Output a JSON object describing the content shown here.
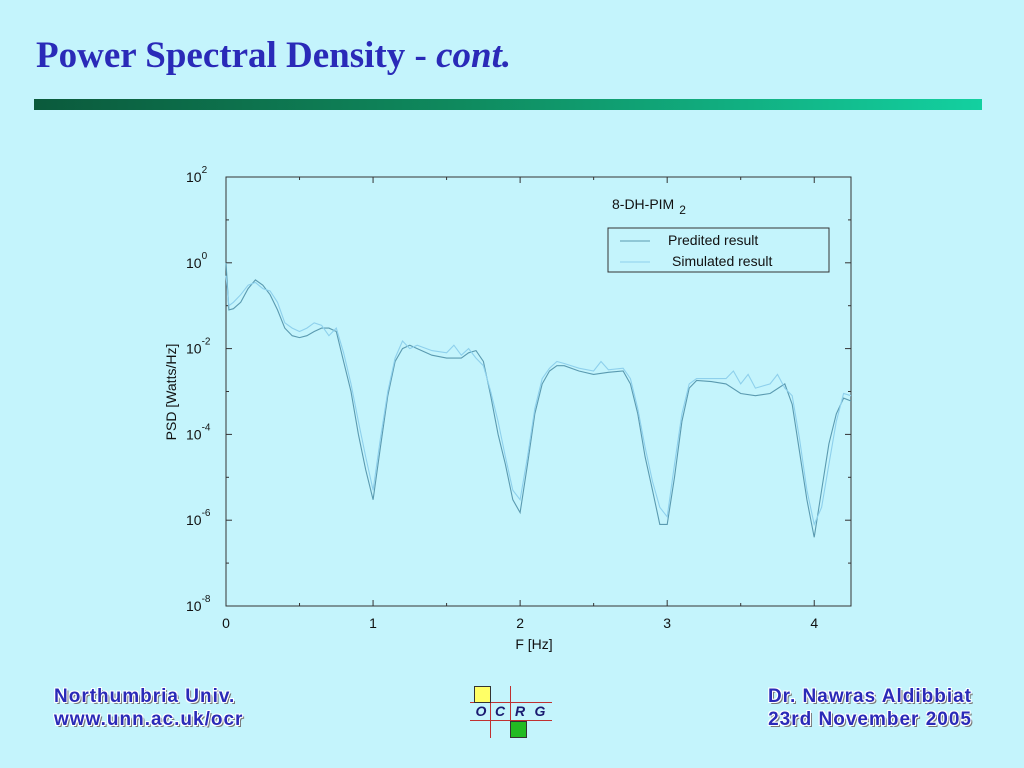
{
  "slide": {
    "title_main": "Power Spectral Density - ",
    "title_emph": "cont.",
    "footer_left_line1": "Northumbria Univ.",
    "footer_left_line2": "www.unn.ac.uk/ocr",
    "footer_right_line1": "Dr. Nawras Aldibbiat",
    "footer_right_line2": "23rd November 2005",
    "logo_letters": [
      "O",
      "C",
      "R",
      "G"
    ],
    "logo_colors": {
      "top_box": "#ffff66",
      "bottom_box": "#22bb22"
    }
  },
  "chart_data": {
    "type": "line",
    "annotation": "8-DH-PIM",
    "annotation_sub": "2",
    "xlabel": "F [Hz]",
    "ylabel": "PSD [Watts/Hz]",
    "xlim": [
      0,
      4.25
    ],
    "ylim_exponent": [
      -8,
      2
    ],
    "yscale": "log",
    "x_ticks": [
      0,
      1,
      2,
      3,
      4
    ],
    "y_ticks": [
      {
        "exp": -8,
        "base": "10",
        "sup": "-8"
      },
      {
        "exp": -6,
        "base": "10",
        "sup": "-6"
      },
      {
        "exp": -4,
        "base": "10",
        "sup": "-4"
      },
      {
        "exp": -2,
        "base": "10",
        "sup": "-2"
      },
      {
        "exp": 0,
        "base": "10",
        "sup": "0"
      },
      {
        "exp": 2,
        "base": "10",
        "sup": "2"
      }
    ],
    "legend_position": "top-right",
    "series": [
      {
        "name": "Predited result",
        "color": "#5a9ab0",
        "points": [
          [
            0.0,
            1.0
          ],
          [
            0.02,
            0.08
          ],
          [
            0.05,
            0.085
          ],
          [
            0.1,
            0.12
          ],
          [
            0.15,
            0.25
          ],
          [
            0.2,
            0.4
          ],
          [
            0.25,
            0.3
          ],
          [
            0.3,
            0.18
          ],
          [
            0.35,
            0.08
          ],
          [
            0.4,
            0.03
          ],
          [
            0.45,
            0.02
          ],
          [
            0.5,
            0.018
          ],
          [
            0.55,
            0.02
          ],
          [
            0.6,
            0.025
          ],
          [
            0.65,
            0.03
          ],
          [
            0.7,
            0.03
          ],
          [
            0.75,
            0.025
          ],
          [
            0.8,
            0.005
          ],
          [
            0.85,
            0.001
          ],
          [
            0.9,
            0.0001
          ],
          [
            0.95,
            1.5e-05
          ],
          [
            1.0,
            3e-06
          ],
          [
            1.05,
            5e-05
          ],
          [
            1.1,
            0.0008
          ],
          [
            1.15,
            0.005
          ],
          [
            1.2,
            0.01
          ],
          [
            1.25,
            0.012
          ],
          [
            1.3,
            0.01
          ],
          [
            1.4,
            0.007
          ],
          [
            1.5,
            0.006
          ],
          [
            1.6,
            0.006
          ],
          [
            1.65,
            0.008
          ],
          [
            1.7,
            0.009
          ],
          [
            1.75,
            0.005
          ],
          [
            1.8,
            0.0008
          ],
          [
            1.85,
            0.0001
          ],
          [
            1.9,
            2e-05
          ],
          [
            1.95,
            3e-06
          ],
          [
            2.0,
            1.5e-06
          ],
          [
            2.05,
            2e-05
          ],
          [
            2.1,
            0.0003
          ],
          [
            2.15,
            0.0015
          ],
          [
            2.2,
            0.003
          ],
          [
            2.25,
            0.004
          ],
          [
            2.3,
            0.004
          ],
          [
            2.4,
            0.003
          ],
          [
            2.5,
            0.0025
          ],
          [
            2.6,
            0.0028
          ],
          [
            2.7,
            0.003
          ],
          [
            2.75,
            0.0015
          ],
          [
            2.8,
            0.0003
          ],
          [
            2.85,
            3e-05
          ],
          [
            2.9,
            5e-06
          ],
          [
            2.95,
            8e-07
          ],
          [
            3.0,
            8e-07
          ],
          [
            3.05,
            1e-05
          ],
          [
            3.1,
            0.0002
          ],
          [
            3.15,
            0.0012
          ],
          [
            3.2,
            0.0018
          ],
          [
            3.3,
            0.0017
          ],
          [
            3.4,
            0.0015
          ],
          [
            3.5,
            0.0009
          ],
          [
            3.6,
            0.0008
          ],
          [
            3.7,
            0.0009
          ],
          [
            3.8,
            0.0015
          ],
          [
            3.85,
            0.0005
          ],
          [
            3.9,
            4e-05
          ],
          [
            3.95,
            3e-06
          ],
          [
            4.0,
            4e-07
          ],
          [
            4.05,
            5e-06
          ],
          [
            4.1,
            6e-05
          ],
          [
            4.15,
            0.0003
          ],
          [
            4.2,
            0.0007
          ],
          [
            4.25,
            0.0006
          ]
        ]
      },
      {
        "name": "Simulated result",
        "color": "#8ed0ec",
        "points": [
          [
            0.0,
            0.5
          ],
          [
            0.02,
            0.1
          ],
          [
            0.05,
            0.12
          ],
          [
            0.1,
            0.18
          ],
          [
            0.15,
            0.3
          ],
          [
            0.2,
            0.35
          ],
          [
            0.25,
            0.25
          ],
          [
            0.3,
            0.22
          ],
          [
            0.35,
            0.12
          ],
          [
            0.4,
            0.04
          ],
          [
            0.45,
            0.03
          ],
          [
            0.5,
            0.025
          ],
          [
            0.55,
            0.03
          ],
          [
            0.6,
            0.04
          ],
          [
            0.65,
            0.035
          ],
          [
            0.7,
            0.02
          ],
          [
            0.75,
            0.03
          ],
          [
            0.8,
            0.008
          ],
          [
            0.85,
            0.0015
          ],
          [
            0.9,
            0.0002
          ],
          [
            0.95,
            3e-05
          ],
          [
            1.0,
            5e-06
          ],
          [
            1.05,
            8e-05
          ],
          [
            1.1,
            0.001
          ],
          [
            1.15,
            0.006
          ],
          [
            1.2,
            0.015
          ],
          [
            1.25,
            0.01
          ],
          [
            1.3,
            0.012
          ],
          [
            1.4,
            0.009
          ],
          [
            1.5,
            0.008
          ],
          [
            1.55,
            0.012
          ],
          [
            1.6,
            0.007
          ],
          [
            1.65,
            0.01
          ],
          [
            1.7,
            0.006
          ],
          [
            1.75,
            0.004
          ],
          [
            1.8,
            0.001
          ],
          [
            1.85,
            0.0002
          ],
          [
            1.9,
            3e-05
          ],
          [
            1.95,
            5e-06
          ],
          [
            2.0,
            3e-06
          ],
          [
            2.05,
            3e-05
          ],
          [
            2.1,
            0.0004
          ],
          [
            2.15,
            0.002
          ],
          [
            2.2,
            0.0035
          ],
          [
            2.25,
            0.005
          ],
          [
            2.3,
            0.0045
          ],
          [
            2.4,
            0.0035
          ],
          [
            2.5,
            0.003
          ],
          [
            2.55,
            0.005
          ],
          [
            2.6,
            0.0032
          ],
          [
            2.7,
            0.0035
          ],
          [
            2.75,
            0.002
          ],
          [
            2.8,
            0.0004
          ],
          [
            2.85,
            5e-05
          ],
          [
            2.9,
            8e-06
          ],
          [
            2.95,
            2e-06
          ],
          [
            3.0,
            1.2e-06
          ],
          [
            3.05,
            2e-05
          ],
          [
            3.1,
            0.0003
          ],
          [
            3.15,
            0.0015
          ],
          [
            3.2,
            0.002
          ],
          [
            3.3,
            0.002
          ],
          [
            3.4,
            0.002
          ],
          [
            3.45,
            0.003
          ],
          [
            3.5,
            0.0015
          ],
          [
            3.55,
            0.0025
          ],
          [
            3.6,
            0.0012
          ],
          [
            3.7,
            0.0015
          ],
          [
            3.75,
            0.0025
          ],
          [
            3.8,
            0.0012
          ],
          [
            3.85,
            0.0008
          ],
          [
            3.9,
            8e-05
          ],
          [
            3.95,
            5e-06
          ],
          [
            4.0,
            8e-07
          ],
          [
            4.05,
            2e-06
          ],
          [
            4.1,
            2e-05
          ],
          [
            4.15,
            0.0002
          ],
          [
            4.2,
            0.0009
          ],
          [
            4.25,
            0.0008
          ]
        ]
      }
    ]
  }
}
